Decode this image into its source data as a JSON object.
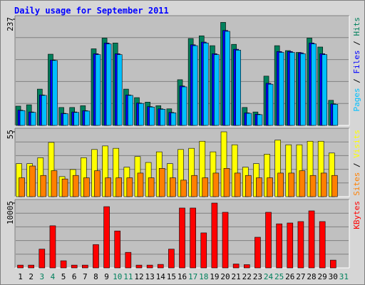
{
  "title": "Daily usage for September 2011",
  "label_separator": " / ",
  "categories": [
    "1",
    "2",
    "3",
    "4",
    "5",
    "6",
    "7",
    "8",
    "9",
    "10",
    "11",
    "12",
    "13",
    "14",
    "15",
    "16",
    "17",
    "18",
    "19",
    "20",
    "21",
    "22",
    "23",
    "24",
    "25",
    "26",
    "27",
    "28",
    "29",
    "30",
    "31"
  ],
  "category_colors": [
    "#000000",
    "#000000",
    "#00805c",
    "#00805c",
    "#000000",
    "#000000",
    "#000000",
    "#000000",
    "#000000",
    "#00805c",
    "#00805c",
    "#000000",
    "#000000",
    "#000000",
    "#000000",
    "#000000",
    "#00805c",
    "#00805c",
    "#000000",
    "#000000",
    "#000000",
    "#000000",
    "#000000",
    "#00805c",
    "#00805c",
    "#000000",
    "#000000",
    "#000000",
    "#000000",
    "#000000",
    "#00805c"
  ],
  "chart_data": [
    {
      "type": "bar",
      "ylim": [
        0,
        237
      ],
      "yticks": [
        237
      ],
      "series": [
        {
          "name": "Hits",
          "color": "#00805c",
          "values": [
            43,
            46,
            81,
            159,
            40,
            40,
            44,
            171,
            195,
            184,
            81,
            62,
            52,
            44,
            37,
            102,
            194,
            200,
            178,
            230,
            181,
            40,
            30,
            110,
            178,
            167,
            163,
            195,
            175,
            56
          ]
        },
        {
          "name": "Files",
          "color": "#0000ff",
          "values": [
            34,
            30,
            68,
            146,
            27,
            30,
            33,
            160,
            184,
            160,
            68,
            50,
            42,
            37,
            29,
            88,
            180,
            186,
            160,
            212,
            170,
            28,
            25,
            94,
            165,
            165,
            162,
            184,
            160,
            48
          ]
        },
        {
          "name": "Pages",
          "color": "#00c0ff",
          "values": [
            33,
            29,
            67,
            145,
            26,
            29,
            32,
            158,
            182,
            158,
            67,
            49,
            41,
            36,
            28,
            86,
            178,
            184,
            158,
            210,
            168,
            27,
            24,
            92,
            163,
            163,
            160,
            182,
            158,
            47
          ]
        }
      ]
    },
    {
      "type": "bar",
      "ylim": [
        0,
        55
      ],
      "yticks": [
        55
      ],
      "series": [
        {
          "name": "Visits",
          "color": "#ffff00",
          "values": [
            28,
            28,
            33,
            46,
            17,
            23,
            33,
            40,
            43,
            41,
            25,
            34,
            29,
            38,
            28,
            40,
            41,
            47,
            38,
            55,
            44,
            25,
            28,
            36,
            48,
            44,
            44,
            47,
            47,
            37
          ]
        },
        {
          "name": "Sites",
          "color": "#ff8000",
          "values": [
            16,
            26,
            18,
            22,
            15,
            18,
            16,
            22,
            16,
            16,
            16,
            20,
            16,
            24,
            16,
            14,
            18,
            16,
            20,
            24,
            20,
            18,
            16,
            16,
            20,
            20,
            22,
            18,
            20,
            18
          ]
        }
      ]
    },
    {
      "type": "bar",
      "ylim": [
        0,
        10005
      ],
      "yticks": [
        10005
      ],
      "series": [
        {
          "name": "KBytes",
          "color": "#ff0000",
          "values": [
            430,
            430,
            2900,
            6500,
            1100,
            430,
            430,
            3600,
            9450,
            5700,
            2400,
            430,
            430,
            540,
            2900,
            9240,
            9240,
            5400,
            10005,
            8580,
            600,
            500,
            4730,
            8580,
            6800,
            6930,
            7150,
            8800,
            7150,
            1200
          ]
        }
      ]
    }
  ]
}
